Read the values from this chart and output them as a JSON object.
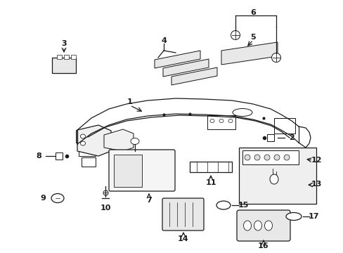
{
  "bg_color": "#ffffff",
  "fig_width": 4.89,
  "fig_height": 3.6,
  "dpi": 100,
  "label_fontsize": 8,
  "line_color": "#1a1a1a",
  "lw": 0.9
}
